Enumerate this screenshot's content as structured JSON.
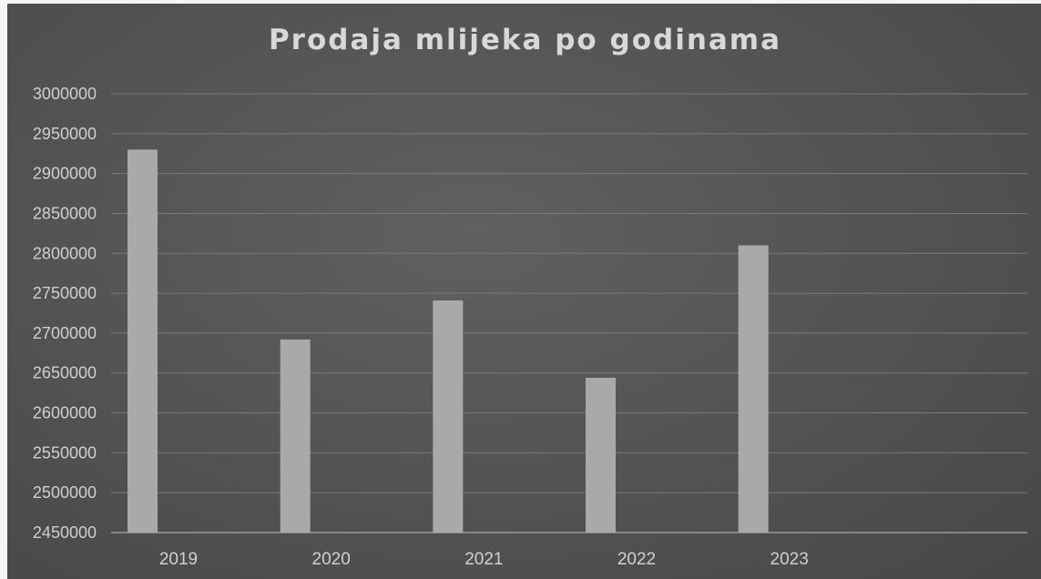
{
  "chart_data": {
    "type": "bar",
    "title": "Prodaja mlijeka po godinama",
    "xlabel": "",
    "ylabel": "",
    "categories": [
      "2019",
      "2020",
      "2021",
      "2022",
      "2023",
      ""
    ],
    "values": [
      2930000,
      2692000,
      2741000,
      2644000,
      2810000,
      null
    ],
    "ylim": [
      2450000,
      3000000
    ],
    "yticks": [
      "3000000",
      "2950000",
      "2900000",
      "2850000",
      "2800000",
      "2750000",
      "2700000",
      "2650000",
      "2600000",
      "2550000",
      "2500000",
      "2450000"
    ],
    "grid": true,
    "legend": "none",
    "colors": {
      "background": "#555555",
      "bar": "#a9a9a9",
      "gridline": "#7a7a7a",
      "text": "#d0d0d0"
    }
  }
}
